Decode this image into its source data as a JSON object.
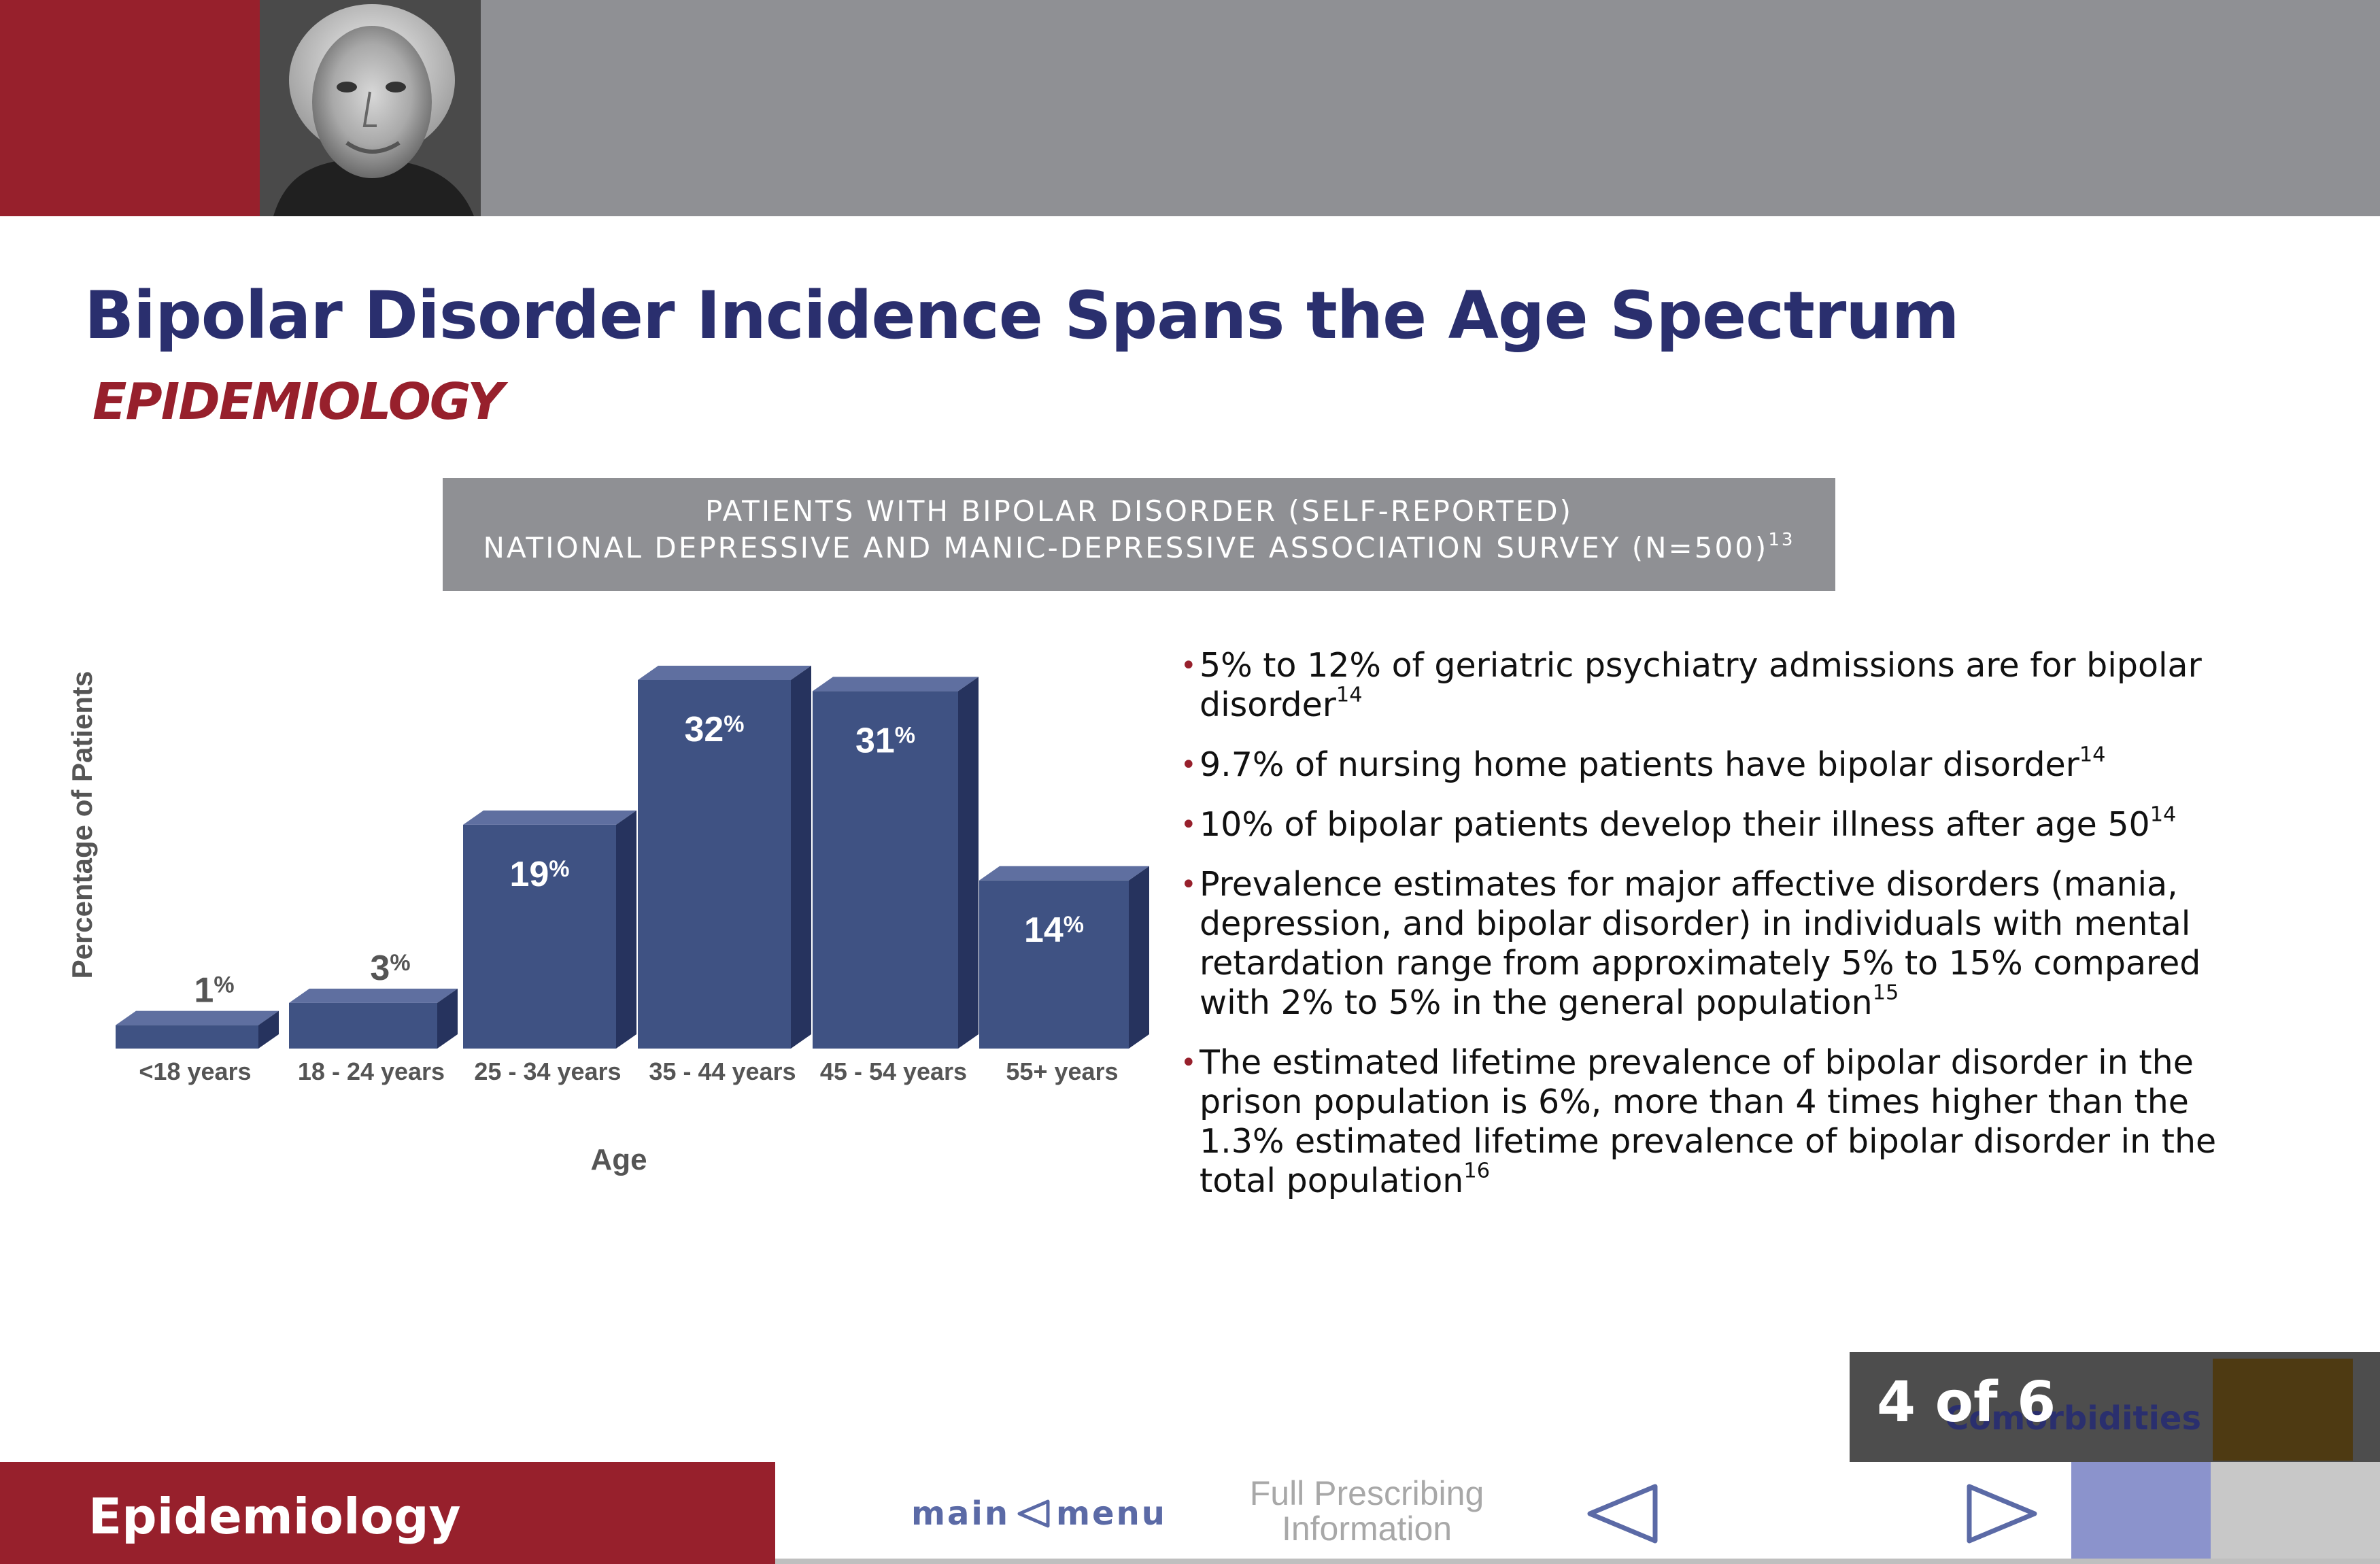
{
  "header": {
    "title": "Bipolar Disorder Incidence Spans the Age Spectrum",
    "subtitle": "EPIDEMIOLOGY"
  },
  "banner": {
    "line1": "PATIENTS WITH BIPOLAR DISORDER (SELF-REPORTED)",
    "line2": "NATIONAL DEPRESSIVE AND MANIC-DEPRESSIVE ASSOCIATION SURVEY (N=500)",
    "line2_ref": "13"
  },
  "chart_data": {
    "type": "bar",
    "categories": [
      "<18 years",
      "18 - 24 years",
      "25 - 34 years",
      "35 - 44 years",
      "45 - 54  years",
      "55+ years"
    ],
    "values": [
      1,
      3,
      19,
      32,
      31,
      14
    ],
    "value_labels": [
      "1",
      "3",
      "19",
      "32",
      "31",
      "14"
    ],
    "value_suffix": "%",
    "title": "",
    "xlabel": "Age",
    "ylabel": "Percentage of Patients",
    "ylim": [
      0,
      32
    ],
    "grid": false,
    "legend": "none",
    "colors": {
      "front": "#3f5283",
      "top": "#5f6fa0",
      "side": "#26335e",
      "axis_text": "#555555"
    }
  },
  "bullets": [
    {
      "text": "5% to 12% of geriatric psychiatry admissions are for bipolar disorder",
      "ref": "14"
    },
    {
      "text": "9.7% of nursing home patients have bipolar disorder",
      "ref": "14"
    },
    {
      "text": "10% of bipolar patients develop their illness after age 50",
      "ref": "14"
    },
    {
      "text": "Prevalence estimates for major affective disorders (mania, depression, and bipolar disorder) in individuals with mental retardation range from approximately 5% to 15% compared with 2% to 5% in the general population",
      "ref": "15"
    },
    {
      "text": "The estimated lifetime prevalence of bipolar disorder in the prison population is 6%, more than 4 times higher than the 1.3% estimated lifetime prevalence of bipolar disorder in the total population",
      "ref": "16"
    }
  ],
  "footer": {
    "section": "Epidemiology",
    "main_label": "main",
    "menu_label": "menu",
    "prescribing_line1": "Full Prescribing",
    "prescribing_line2": "Information",
    "counter": "4 of 6",
    "next_section": "Comorbidities"
  },
  "icons": {
    "prev": "triangle-left-outline",
    "next": "triangle-right-outline",
    "main_menu": "triangle-left-outline",
    "photo": "portrait-photo"
  },
  "colors": {
    "brand_red": "#97202c",
    "header_gray": "#8f9094",
    "title_navy": "#2a2f6e",
    "nav_blue": "#5b6aa6"
  }
}
